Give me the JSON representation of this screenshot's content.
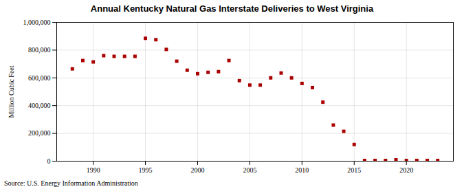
{
  "chart_data": {
    "type": "scatter",
    "title": "Annual Kentucky Natural Gas Interstate Deliveries to West Virginia",
    "ylabel": "Million Cubic Feet",
    "source": "Source: U.S. Energy Information Administration",
    "x": [
      1988,
      1989,
      1990,
      1991,
      1992,
      1993,
      1994,
      1995,
      1996,
      1997,
      1998,
      1999,
      2000,
      2001,
      2002,
      2003,
      2004,
      2005,
      2006,
      2007,
      2008,
      2009,
      2010,
      2011,
      2012,
      2013,
      2014,
      2015,
      2016,
      2017,
      2018,
      2019,
      2020,
      2021,
      2022,
      2023
    ],
    "values": [
      665000,
      725000,
      715000,
      760000,
      755000,
      755000,
      755000,
      885000,
      875000,
      805000,
      720000,
      655000,
      630000,
      640000,
      645000,
      725000,
      580000,
      548000,
      548000,
      600000,
      635000,
      600000,
      560000,
      530000,
      425000,
      260000,
      215000,
      120000,
      5000,
      5000,
      5000,
      10000,
      5000,
      5000,
      5000,
      5000
    ],
    "color": "#aa0000",
    "marker": "square",
    "xlim": [
      1986.5,
      2024.5
    ],
    "xticks": [
      1990,
      1995,
      2000,
      2005,
      2010,
      2015,
      2020
    ],
    "ylim": [
      0,
      1000000
    ],
    "yticks": [
      0,
      {
        "value": 200000,
        "label": "200,000"
      },
      {
        "value": 400000,
        "label": "400,000"
      },
      {
        "value": 600000,
        "label": "600,000"
      },
      {
        "value": 800000,
        "label": "800,000"
      },
      {
        "value": 1000000,
        "label": "1,000,000"
      }
    ],
    "grid": true
  }
}
